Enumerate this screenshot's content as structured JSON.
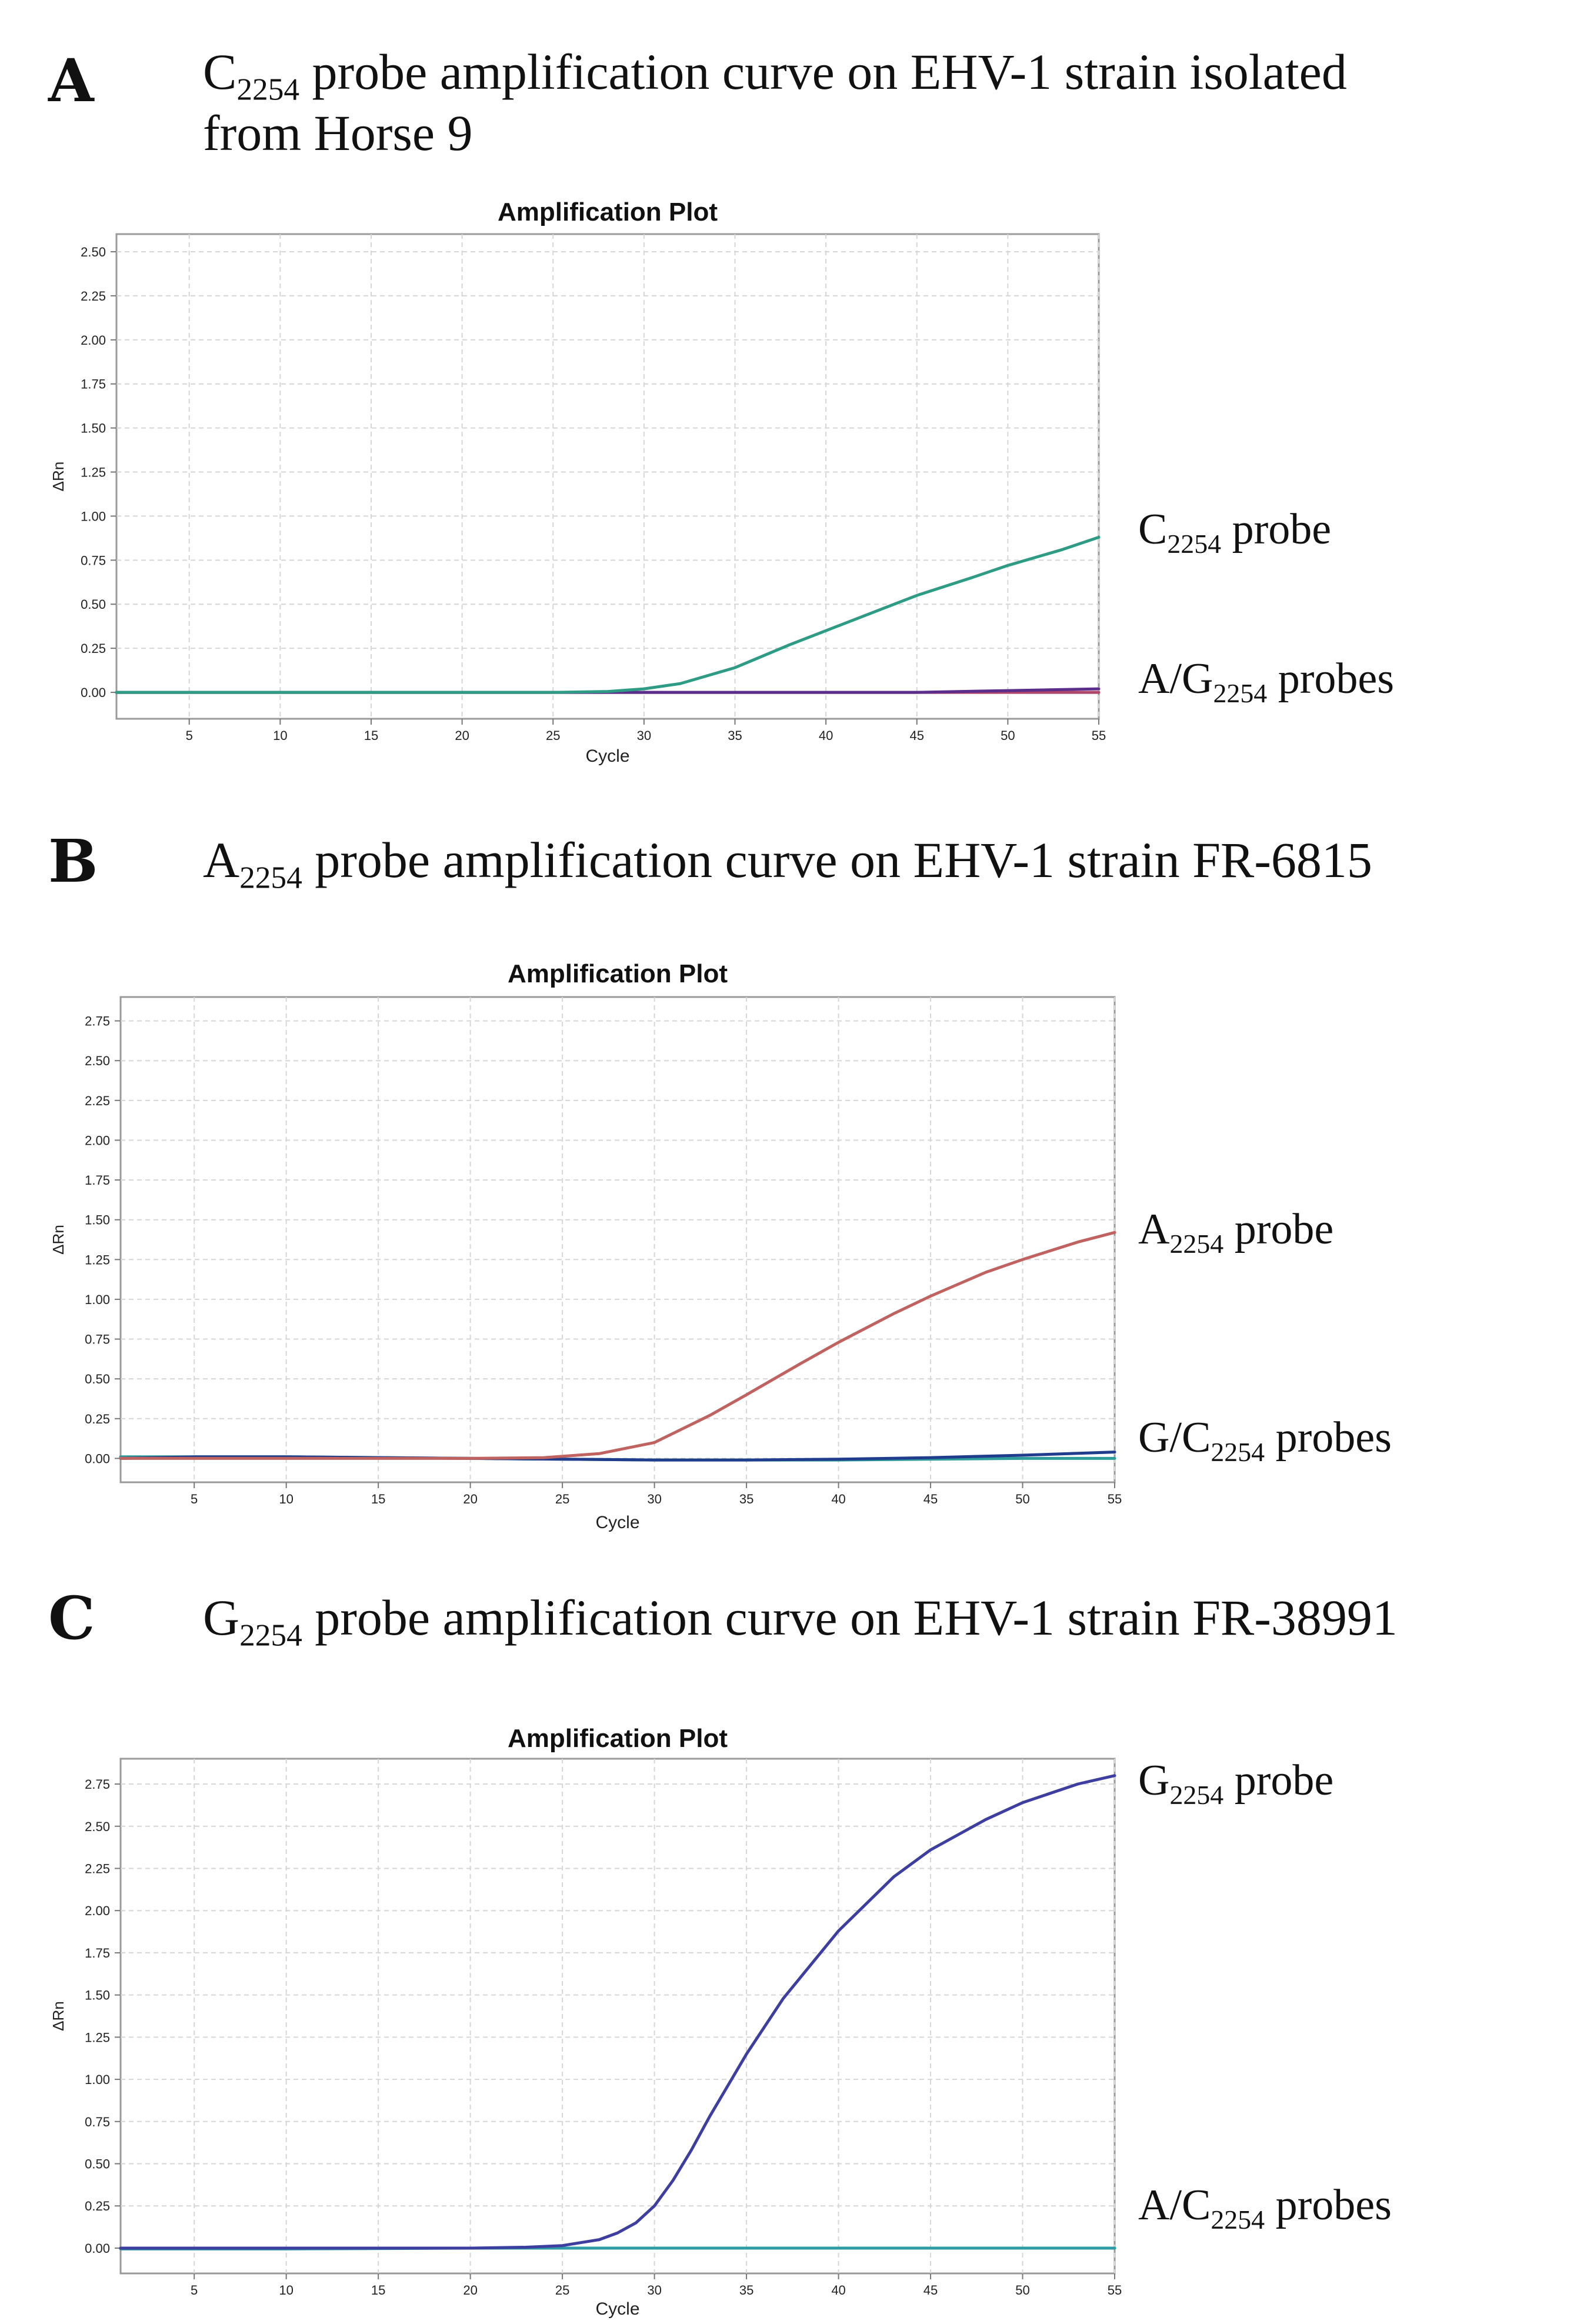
{
  "chart_data": [
    {
      "type": "line",
      "panel_letter": "A",
      "caption": {
        "pre": "C",
        "sub": "2254",
        "post": " probe amplification curve on EHV-1 strain isolated",
        "line2": "from Horse 9"
      },
      "title": "Amplification Plot",
      "xlabel": "Cycle",
      "ylabel": "ΔRn",
      "xlim": [
        1,
        55
      ],
      "ylim": [
        -0.15,
        2.6
      ],
      "x_ticks": [
        5,
        10,
        15,
        20,
        25,
        30,
        35,
        40,
        45,
        50,
        55
      ],
      "y_ticks": [
        "0.00",
        "0.25",
        "0.50",
        "0.75",
        "1.00",
        "1.25",
        "1.50",
        "1.75",
        "2.00",
        "2.25",
        "2.50"
      ],
      "series": [
        {
          "name": "A/G2254 probes (pink)",
          "color": "#b0456a",
          "x": [
            1,
            10,
            20,
            30,
            40,
            50,
            55
          ],
          "values": [
            0.0,
            0.0,
            0.0,
            0.0,
            0.0,
            0.0,
            0.0
          ]
        },
        {
          "name": "A/G2254 probes (purple)",
          "color": "#5b2e8c",
          "x": [
            1,
            10,
            20,
            30,
            40,
            45,
            50,
            55
          ],
          "values": [
            0.0,
            0.0,
            0.0,
            0.0,
            0.0,
            0.0,
            0.01,
            0.02
          ]
        },
        {
          "name": "C2254 probe",
          "color": "#2e9c84",
          "x": [
            1,
            10,
            20,
            25,
            28,
            30,
            32,
            35,
            38,
            40,
            43,
            45,
            48,
            50,
            53,
            55
          ],
          "values": [
            0.0,
            0.0,
            0.0,
            0.0,
            0.005,
            0.02,
            0.05,
            0.14,
            0.27,
            0.35,
            0.47,
            0.55,
            0.65,
            0.72,
            0.81,
            0.88
          ]
        }
      ],
      "annotations": [
        {
          "pre": "C",
          "sub": "2254",
          "post": " probe"
        },
        {
          "pre": "A/G",
          "sub": "2254",
          "post": " probes"
        }
      ]
    },
    {
      "type": "line",
      "panel_letter": "B",
      "caption": {
        "pre": "A",
        "sub": "2254",
        "post": " probe amplification curve on EHV-1 strain FR-6815",
        "line2": ""
      },
      "title": "Amplification Plot",
      "xlabel": "Cycle",
      "ylabel": "ΔRn",
      "xlim": [
        1,
        55
      ],
      "ylim": [
        -0.15,
        2.9
      ],
      "x_ticks": [
        5,
        10,
        15,
        20,
        25,
        30,
        35,
        40,
        45,
        50,
        55
      ],
      "y_ticks": [
        "0.00",
        "0.25",
        "0.50",
        "0.75",
        "1.00",
        "1.25",
        "1.50",
        "1.75",
        "2.00",
        "2.25",
        "2.50",
        "2.75"
      ],
      "series": [
        {
          "name": "G/C2254 probes (teal)",
          "color": "#2e9c9a",
          "x": [
            1,
            10,
            20,
            25,
            30,
            35,
            40,
            45,
            50,
            55
          ],
          "values": [
            0.01,
            0.01,
            0.0,
            -0.005,
            -0.01,
            -0.01,
            -0.01,
            -0.005,
            0.0,
            0.0
          ]
        },
        {
          "name": "G/C2254 probes (blue)",
          "color": "#1f3d8c",
          "x": [
            1,
            5,
            10,
            20,
            25,
            30,
            35,
            40,
            45,
            50,
            55
          ],
          "values": [
            0.0,
            0.01,
            0.01,
            0.0,
            -0.005,
            -0.01,
            -0.01,
            -0.005,
            0.005,
            0.02,
            0.04
          ]
        },
        {
          "name": "A2254 probe",
          "color": "#c0625f",
          "x": [
            1,
            10,
            20,
            24,
            27,
            30,
            33,
            35,
            38,
            40,
            43,
            45,
            48,
            50,
            53,
            55
          ],
          "values": [
            0.0,
            0.0,
            0.0,
            0.005,
            0.03,
            0.1,
            0.27,
            0.4,
            0.6,
            0.73,
            0.91,
            1.02,
            1.17,
            1.25,
            1.36,
            1.42
          ]
        }
      ],
      "annotations": [
        {
          "pre": "A",
          "sub": "2254",
          "post": " probe"
        },
        {
          "pre": "G/C",
          "sub": "2254",
          "post": " probes"
        }
      ]
    },
    {
      "type": "line",
      "panel_letter": "C",
      "caption": {
        "pre": "G",
        "sub": "2254",
        "post": " probe amplification curve on EHV-1 strain FR-38991",
        "line2": ""
      },
      "title": "Amplification Plot",
      "xlabel": "Cycle",
      "ylabel": "ΔRn",
      "xlim": [
        1,
        55
      ],
      "ylim": [
        -0.15,
        2.9
      ],
      "x_ticks": [
        5,
        10,
        15,
        20,
        25,
        30,
        35,
        40,
        45,
        50,
        55
      ],
      "y_ticks": [
        "0.00",
        "0.25",
        "0.50",
        "0.75",
        "1.00",
        "1.25",
        "1.50",
        "1.75",
        "2.00",
        "2.25",
        "2.50",
        "2.75"
      ],
      "series": [
        {
          "name": "A/C2254 probes (green)",
          "color": "#3f8a3f",
          "x": [
            1,
            10,
            20,
            30,
            40,
            50,
            55
          ],
          "values": [
            0.0,
            0.0,
            0.0,
            0.0,
            0.0,
            0.0,
            0.0
          ]
        },
        {
          "name": "A/C2254 probes (teal)",
          "color": "#2e9ca6",
          "x": [
            1,
            10,
            20,
            30,
            40,
            50,
            55
          ],
          "values": [
            -0.005,
            -0.005,
            0.0,
            0.0,
            0.0,
            0.0,
            0.0
          ]
        },
        {
          "name": "G2254 probe",
          "color": "#3d3fa0",
          "x": [
            1,
            10,
            20,
            23,
            25,
            27,
            28,
            29,
            30,
            31,
            32,
            33,
            35,
            37,
            40,
            43,
            45,
            48,
            50,
            53,
            55
          ],
          "values": [
            0.0,
            0.0,
            0.0,
            0.005,
            0.015,
            0.05,
            0.09,
            0.15,
            0.25,
            0.4,
            0.58,
            0.78,
            1.15,
            1.48,
            1.88,
            2.2,
            2.36,
            2.54,
            2.64,
            2.75,
            2.8
          ]
        }
      ],
      "annotations": [
        {
          "pre": "G",
          "sub": "2254",
          "post": " probe"
        },
        {
          "pre": "A/C",
          "sub": "2254",
          "post": " probes"
        }
      ]
    }
  ]
}
